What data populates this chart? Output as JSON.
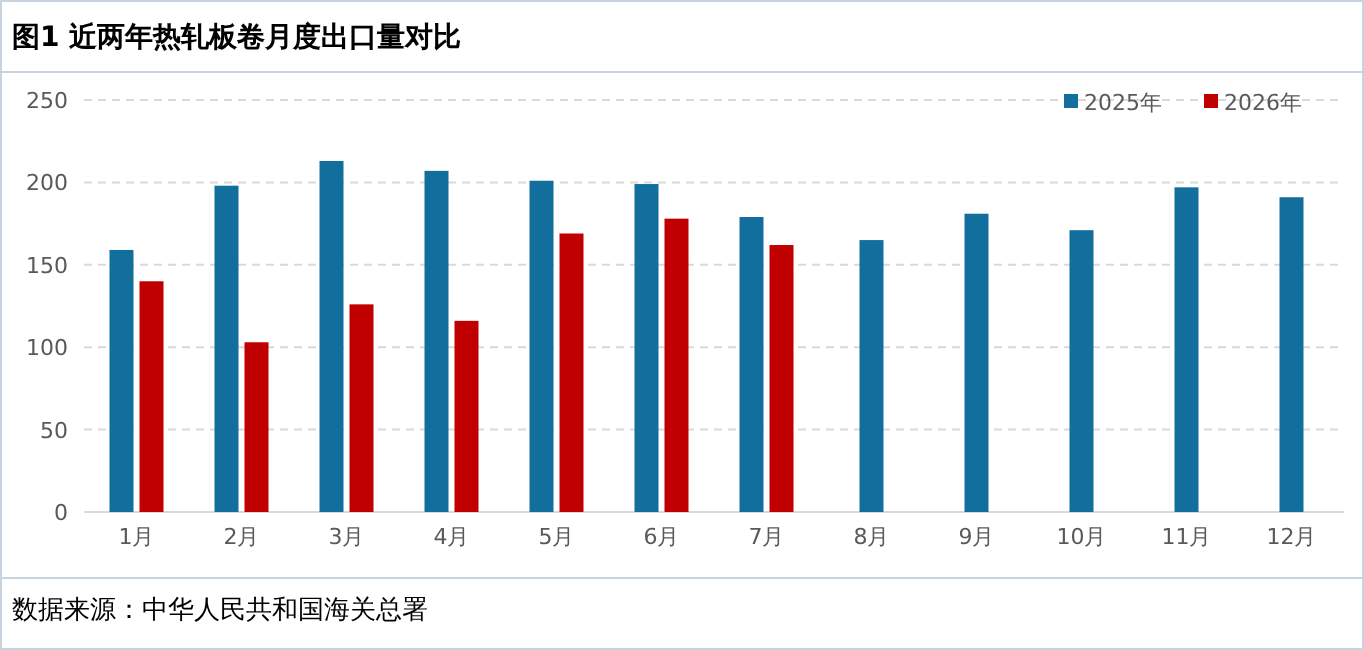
{
  "chart_data": {
    "type": "bar",
    "title": "图1  近两年热轧板卷月度出口量对比",
    "annotations": [
      "数据来源：中华人民共和国海关总署"
    ],
    "categories": [
      "1月",
      "2月",
      "3月",
      "4月",
      "5月",
      "6月",
      "7月",
      "8月",
      "9月",
      "10月",
      "11月",
      "12月"
    ],
    "series": [
      {
        "name": "2025年",
        "color": "#126e9c",
        "values": [
          159,
          198,
          213,
          207,
          201,
          199,
          179,
          165,
          181,
          171,
          197,
          191
        ]
      },
      {
        "name": "2026年",
        "color": "#c00000",
        "values": [
          140,
          103,
          126,
          116,
          169,
          178,
          162,
          null,
          null,
          null,
          null,
          null
        ]
      }
    ],
    "ylim": [
      0,
      250
    ],
    "yticks": [
      0,
      50,
      100,
      150,
      200,
      250
    ],
    "grid": "y",
    "legend": "top right"
  }
}
